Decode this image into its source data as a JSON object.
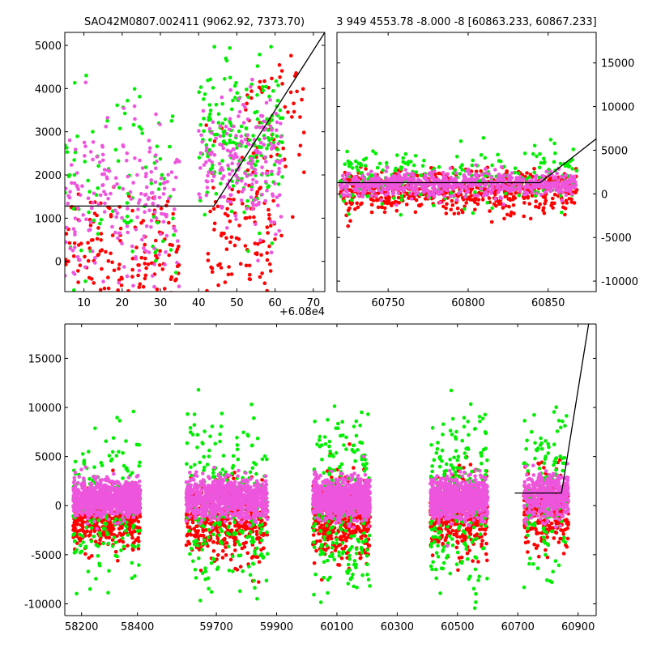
{
  "chart_data": [
    {
      "id": "top-left",
      "type": "scatter",
      "title": "SAO42M0807.002411 (9062.92, 7373.70)",
      "xlim": [
        5,
        73
      ],
      "ylim": [
        -700,
        5300
      ],
      "xticks": [
        10,
        20,
        30,
        40,
        50,
        60,
        70
      ],
      "yticks": [
        0,
        1000,
        2000,
        3000,
        4000,
        5000
      ],
      "x_offset_label": "+6.08e4",
      "y_axis_side": "left",
      "series": [
        {
          "name": "red",
          "color": "#ff0000",
          "clusters": [
            {
              "x0": 5,
              "x1": 35,
              "y": 200,
              "sd": 700,
              "n": 160
            },
            {
              "x0": 42,
              "x1": 60,
              "y": 700,
              "sd": 900,
              "n": 110
            },
            {
              "x0": 52,
              "x1": 68,
              "y": 3200,
              "sd": 900,
              "n": 60
            }
          ]
        },
        {
          "name": "green",
          "color": "#00ee00",
          "clusters": [
            {
              "x0": 5,
              "x1": 35,
              "y": 1500,
              "sd": 1200,
              "n": 90
            },
            {
              "x0": 40,
              "x1": 62,
              "y": 2800,
              "sd": 900,
              "n": 200
            }
          ]
        },
        {
          "name": "magenta",
          "color": "#ee55dd",
          "clusters": [
            {
              "x0": 5,
              "x1": 35,
              "y": 1300,
              "sd": 900,
              "n": 200
            },
            {
              "x0": 40,
              "x1": 62,
              "y": 2300,
              "sd": 800,
              "n": 200
            }
          ]
        }
      ],
      "model_line": [
        [
          5,
          1280
        ],
        [
          44,
          1280
        ],
        [
          73,
          5300
        ]
      ]
    },
    {
      "id": "top-right",
      "type": "scatter",
      "title": "3 949 4553.78 -8.000 -8 [60863.233, 60867.233]",
      "xlim": [
        60718,
        60880
      ],
      "ylim": [
        -11200,
        18500
      ],
      "xticks": [
        60750,
        60800,
        60850
      ],
      "yticks": [
        -10000,
        -5000,
        0,
        5000,
        10000,
        15000
      ],
      "y_axis_side": "right",
      "series": [
        {
          "name": "red",
          "color": "#ff0000",
          "clusters": [
            {
              "x0": 60720,
              "x1": 60868,
              "y": 300,
              "sd": 1200,
              "n": 600
            }
          ]
        },
        {
          "name": "green",
          "color": "#00ee00",
          "clusters": [
            {
              "x0": 60720,
              "x1": 60868,
              "y": 1800,
              "sd": 1700,
              "n": 260
            }
          ]
        },
        {
          "name": "magenta",
          "color": "#ee55dd",
          "clusters": [
            {
              "x0": 60720,
              "x1": 60868,
              "y": 1100,
              "sd": 700,
              "n": 700
            }
          ]
        }
      ],
      "model_line": [
        [
          60718,
          1280
        ],
        [
          60845,
          1280
        ],
        [
          60880,
          6300
        ]
      ]
    },
    {
      "id": "bottom",
      "type": "scatter",
      "title": "",
      "xlim_segments": [
        [
          58140,
          58520
        ],
        [
          59560,
          60960
        ]
      ],
      "ylim": [
        -11200,
        18500
      ],
      "xticks": [
        58200,
        58400,
        59700,
        59900,
        60100,
        60300,
        60500,
        60700,
        60900
      ],
      "yticks": [
        -10000,
        -5000,
        0,
        5000,
        10000,
        15000
      ],
      "y_axis_side": "left",
      "series": [
        {
          "name": "red",
          "color": "#ff0000",
          "clusters": [
            {
              "x0": 58170,
              "x1": 58410,
              "y": -1400,
              "sd": 1400,
              "n": 400
            },
            {
              "x0": 59600,
              "x1": 59870,
              "y": -1600,
              "sd": 2000,
              "n": 420
            },
            {
              "x0": 60020,
              "x1": 60210,
              "y": -1300,
              "sd": 2000,
              "n": 420
            },
            {
              "x0": 60410,
              "x1": 60600,
              "y": -1000,
              "sd": 2000,
              "n": 420
            },
            {
              "x0": 60720,
              "x1": 60868,
              "y": -300,
              "sd": 1800,
              "n": 300
            }
          ]
        },
        {
          "name": "green",
          "color": "#00ee00",
          "clusters": [
            {
              "x0": 58170,
              "x1": 58410,
              "y": 0,
              "sd": 3500,
              "n": 220
            },
            {
              "x0": 59600,
              "x1": 59870,
              "y": 0,
              "sd": 4200,
              "n": 260
            },
            {
              "x0": 60020,
              "x1": 60210,
              "y": 0,
              "sd": 4500,
              "n": 260
            },
            {
              "x0": 60410,
              "x1": 60600,
              "y": 0,
              "sd": 4200,
              "n": 260
            },
            {
              "x0": 60720,
              "x1": 60868,
              "y": 1500,
              "sd": 3800,
              "n": 160
            }
          ]
        },
        {
          "name": "magenta",
          "color": "#ee55dd",
          "clusters": [
            {
              "x0": 58170,
              "x1": 58410,
              "y": 700,
              "sd": 900,
              "n": 900
            },
            {
              "x0": 59600,
              "x1": 59870,
              "y": 700,
              "sd": 1000,
              "n": 900
            },
            {
              "x0": 60020,
              "x1": 60210,
              "y": 700,
              "sd": 1000,
              "n": 900
            },
            {
              "x0": 60410,
              "x1": 60600,
              "y": 700,
              "sd": 1000,
              "n": 900
            },
            {
              "x0": 60720,
              "x1": 60868,
              "y": 1000,
              "sd": 1200,
              "n": 400
            }
          ]
        }
      ],
      "model_line": [
        [
          60690,
          1280
        ],
        [
          60845,
          1280
        ],
        [
          60935,
          18500
        ]
      ]
    }
  ]
}
